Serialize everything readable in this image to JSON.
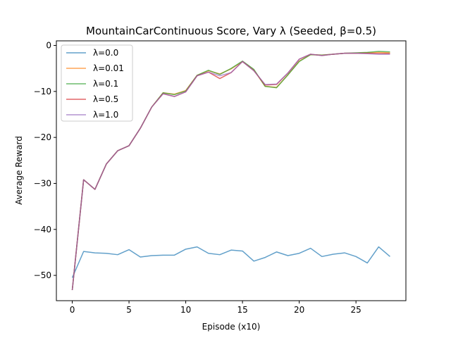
{
  "chart_data": {
    "type": "line",
    "title": "MountainCarContinuous Score, Vary λ (Seeded, β=0.5)",
    "xlabel": "Episode (x10)",
    "ylabel": "Average Reward",
    "xlim": [
      -1.4,
      29.4
    ],
    "ylim": [
      -55.5,
      1.0
    ],
    "xticks": [
      0,
      5,
      10,
      15,
      20,
      25
    ],
    "yticks": [
      0,
      -10,
      -20,
      -30,
      -40,
      -50
    ],
    "grid": false,
    "legend_position": "upper-left",
    "x": [
      0,
      1,
      2,
      3,
      4,
      5,
      6,
      7,
      8,
      9,
      10,
      11,
      12,
      13,
      14,
      15,
      16,
      17,
      18,
      19,
      20,
      21,
      22,
      23,
      24,
      25,
      26,
      27,
      28
    ],
    "series": [
      {
        "name": "λ=0.0",
        "color": "#1f77b4",
        "values": [
          -50.5,
          -44.8,
          -45.1,
          -45.2,
          -45.5,
          -44.4,
          -46.0,
          -45.7,
          -45.6,
          -45.6,
          -44.3,
          -43.8,
          -45.2,
          -45.5,
          -44.5,
          -44.7,
          -46.9,
          -46.1,
          -44.9,
          -45.7,
          -45.2,
          -44.1,
          -45.9,
          -45.4,
          -45.1,
          -45.9,
          -47.3,
          -43.8,
          -45.9
        ]
      },
      {
        "name": "λ=0.01",
        "color": "#ff7f0e",
        "values": [
          -53.2,
          -29.2,
          -31.3,
          -25.8,
          -22.9,
          -21.8,
          -18.0,
          -13.4,
          -10.3,
          -10.6,
          -9.8,
          -6.5,
          -5.5,
          -6.2,
          -5.1,
          -3.5,
          -5.3,
          -8.9,
          -9.1,
          -6.4,
          -3.4,
          -2.0,
          -2.1,
          -1.9,
          -1.7,
          -1.7,
          -1.6,
          -1.5,
          -1.6
        ]
      },
      {
        "name": "λ=0.1",
        "color": "#2ca02c",
        "values": [
          -53.2,
          -29.2,
          -31.3,
          -25.8,
          -22.9,
          -21.8,
          -18.0,
          -13.4,
          -10.3,
          -10.7,
          -9.9,
          -6.5,
          -5.4,
          -6.3,
          -5.0,
          -3.4,
          -5.2,
          -8.9,
          -9.2,
          -6.4,
          -3.5,
          -2.0,
          -2.1,
          -1.9,
          -1.7,
          -1.6,
          -1.5,
          -1.3,
          -1.4
        ]
      },
      {
        "name": "λ=0.5",
        "color": "#d62728",
        "values": [
          -53.2,
          -29.2,
          -31.3,
          -25.8,
          -22.9,
          -21.8,
          -18.0,
          -13.4,
          -10.5,
          -11.1,
          -10.1,
          -6.6,
          -5.8,
          -7.2,
          -5.9,
          -3.5,
          -5.5,
          -8.6,
          -8.5,
          -6.0,
          -3.0,
          -1.9,
          -2.2,
          -1.9,
          -1.7,
          -1.7,
          -1.7,
          -1.8,
          -1.8
        ]
      },
      {
        "name": "λ=1.0",
        "color": "#9467bd",
        "values": [
          -53.2,
          -29.2,
          -31.3,
          -25.8,
          -22.9,
          -21.8,
          -18.0,
          -13.4,
          -10.5,
          -11.1,
          -10.1,
          -6.6,
          -5.8,
          -6.6,
          -5.9,
          -3.5,
          -5.5,
          -8.5,
          -8.4,
          -6.0,
          -3.0,
          -1.9,
          -2.2,
          -1.9,
          -1.7,
          -1.7,
          -1.8,
          -1.9,
          -1.9
        ]
      }
    ]
  }
}
